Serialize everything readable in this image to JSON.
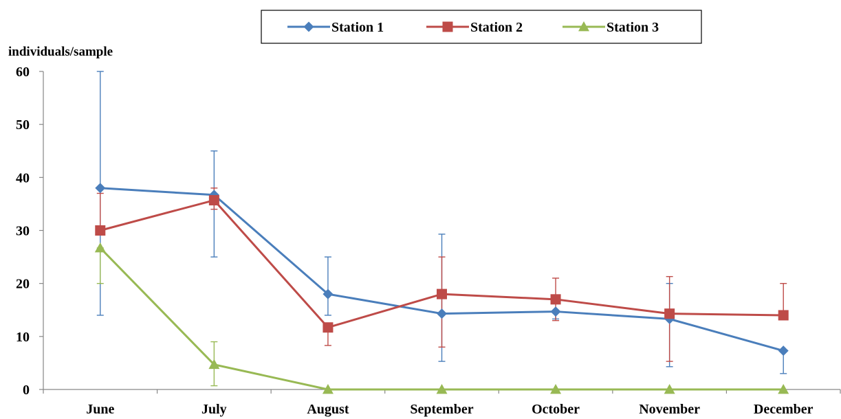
{
  "chart_data": {
    "type": "line",
    "ylabel": "individuals/sample",
    "xlabel": "",
    "categories": [
      "June",
      "July",
      "August",
      "September",
      "October",
      "November",
      "December"
    ],
    "ylim": [
      0,
      60
    ],
    "yticks": [
      0,
      10,
      20,
      30,
      40,
      50,
      60
    ],
    "grid": false,
    "legend_position": "top-center",
    "series": [
      {
        "name": "Station 1",
        "color": "#4A7EBB",
        "marker": "diamond",
        "values": [
          38,
          36.7,
          18,
          14.3,
          14.7,
          13.3,
          7.3
        ],
        "error_low": [
          14,
          25,
          14,
          5.3,
          13.3,
          4.3,
          3
        ],
        "error_high": [
          60,
          45,
          25,
          29.3,
          14.7,
          20,
          7.3
        ]
      },
      {
        "name": "Station 2",
        "color": "#BE4B48",
        "marker": "square",
        "values": [
          30,
          35.7,
          11.7,
          18,
          17,
          14.3,
          14
        ],
        "error_low": [
          30,
          34,
          8.3,
          8,
          13,
          5.3,
          14
        ],
        "error_high": [
          37,
          38,
          11.7,
          25,
          21,
          21.3,
          20
        ]
      },
      {
        "name": "Station 3",
        "color": "#98B954",
        "marker": "triangle",
        "values": [
          26.7,
          4.7,
          0,
          0,
          0,
          0,
          0
        ],
        "error_low": [
          20,
          0.7,
          0,
          0,
          0,
          0,
          0
        ],
        "error_high": [
          26.7,
          9,
          0,
          0,
          0,
          0,
          0
        ]
      }
    ]
  }
}
